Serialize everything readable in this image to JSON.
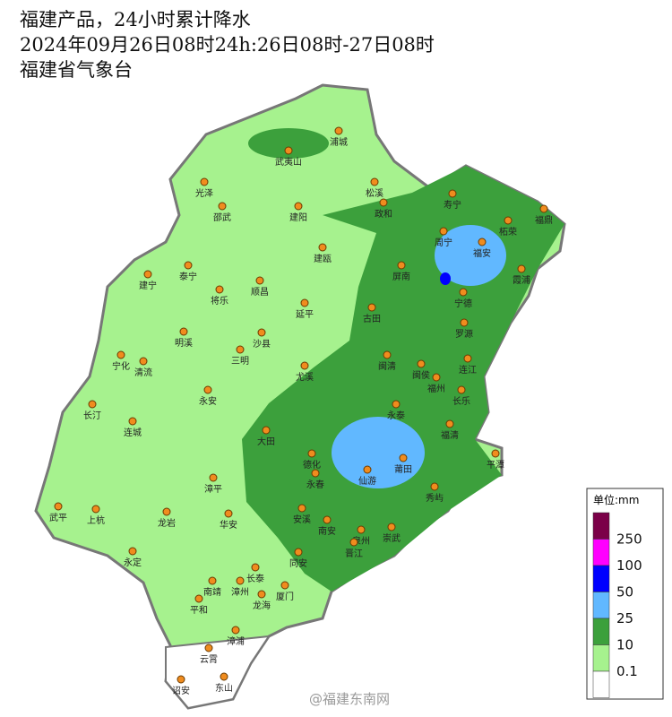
{
  "header": {
    "line1": "福建产品，24小时累计降水",
    "line2": "2024年09月26日08时24h:26日08时-27日08时",
    "line3": "福建省气象台"
  },
  "cities": [
    "浦城",
    "武夷山",
    "松溪",
    "政和",
    "寿宁",
    "福鼎",
    "柘荣",
    "光泽",
    "邵武",
    "建阳",
    "周宁",
    "福安",
    "霞浦",
    "建瓯",
    "泰宁",
    "建宁",
    "将乐",
    "顺昌",
    "屏南",
    "宁德",
    "延平",
    "古田",
    "罗源",
    "明溪",
    "沙县",
    "宁化",
    "清流",
    "三明",
    "尤溪",
    "闽清",
    "闽侯",
    "连江",
    "福州",
    "永安",
    "长乐",
    "长汀",
    "永泰",
    "连城",
    "福清",
    "大田",
    "德化",
    "永春",
    "仙游",
    "莆田",
    "平潭",
    "秀屿",
    "漳平",
    "武平",
    "上杭",
    "龙岩",
    "华安",
    "安溪",
    "南安",
    "泉州",
    "崇武",
    "晋江",
    "永定",
    "同安",
    "长泰",
    "南靖",
    "漳州",
    "厦门",
    "龙海",
    "平和",
    "漳浦",
    "云霄",
    "诏安",
    "东山"
  ],
  "legend": {
    "title": "单位:mm",
    "thresholds": [
      250,
      100,
      50,
      25,
      10,
      0.1
    ],
    "colors": [
      "#7b0048",
      "#ff00ff",
      "#0000ff",
      "#61b8ff",
      "#3ca03c",
      "#a6f28e",
      "#ffffff"
    ]
  },
  "watermark": "@福建东南网"
}
